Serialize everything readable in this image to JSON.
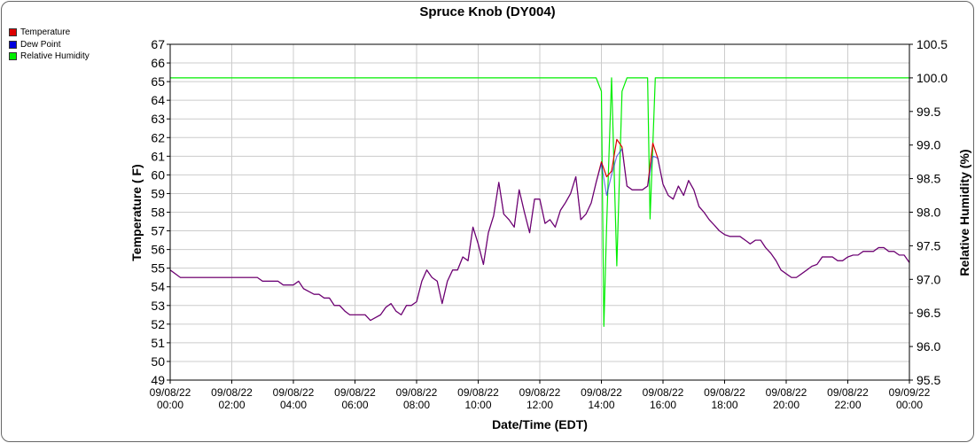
{
  "chart_data": {
    "type": "line",
    "title": "Spruce Knob (DY004)",
    "xlabel": "Date/Time (EDT)",
    "ylabel": "Temperature ( F)",
    "y2label": "Relative Humidity (%)",
    "ylim": [
      49,
      67
    ],
    "y2lim": [
      95.5,
      100.5
    ],
    "xlim": [
      0,
      24
    ],
    "y_ticks": [
      "67",
      "66",
      "65",
      "64",
      "63",
      "62",
      "61",
      "60",
      "59",
      "58",
      "57",
      "56",
      "55",
      "54",
      "53",
      "52",
      "51",
      "50",
      "49"
    ],
    "y2_ticks": [
      "100.5",
      "100.0",
      "99.5",
      "99.0",
      "98.5",
      "98.0",
      "97.5",
      "97.0",
      "96.5",
      "96.0",
      "95.5"
    ],
    "x_ticks": [
      {
        "date": "09/08/22",
        "time": "00:00"
      },
      {
        "date": "09/08/22",
        "time": "02:00"
      },
      {
        "date": "09/08/22",
        "time": "04:00"
      },
      {
        "date": "09/08/22",
        "time": "06:00"
      },
      {
        "date": "09/08/22",
        "time": "08:00"
      },
      {
        "date": "09/08/22",
        "time": "10:00"
      },
      {
        "date": "09/08/22",
        "time": "12:00"
      },
      {
        "date": "09/08/22",
        "time": "14:00"
      },
      {
        "date": "09/08/22",
        "time": "16:00"
      },
      {
        "date": "09/08/22",
        "time": "18:00"
      },
      {
        "date": "09/08/22",
        "time": "20:00"
      },
      {
        "date": "09/08/22",
        "time": "22:00"
      },
      {
        "date": "09/09/22",
        "time": "00:00"
      }
    ],
    "grid": true,
    "legend_position": "top-left",
    "series": [
      {
        "name": "Temperature",
        "color": "#dd0000",
        "axis": "left",
        "points": [
          [
            0,
            54.9
          ],
          [
            0.33,
            54.5
          ],
          [
            1,
            54.5
          ],
          [
            2,
            54.5
          ],
          [
            2.83,
            54.5
          ],
          [
            3,
            54.3
          ],
          [
            3.5,
            54.3
          ],
          [
            3.67,
            54.1
          ],
          [
            4,
            54.1
          ],
          [
            4.17,
            54.3
          ],
          [
            4.33,
            53.9
          ],
          [
            4.67,
            53.6
          ],
          [
            4.83,
            53.6
          ],
          [
            5,
            53.4
          ],
          [
            5.17,
            53.4
          ],
          [
            5.33,
            53.0
          ],
          [
            5.5,
            53.0
          ],
          [
            5.67,
            52.7
          ],
          [
            5.83,
            52.5
          ],
          [
            6,
            52.5
          ],
          [
            6.33,
            52.5
          ],
          [
            6.5,
            52.2
          ],
          [
            6.83,
            52.5
          ],
          [
            7,
            52.9
          ],
          [
            7.17,
            53.1
          ],
          [
            7.33,
            52.7
          ],
          [
            7.5,
            52.5
          ],
          [
            7.67,
            53.0
          ],
          [
            7.83,
            53.0
          ],
          [
            8,
            53.2
          ],
          [
            8.17,
            54.3
          ],
          [
            8.33,
            54.9
          ],
          [
            8.5,
            54.5
          ],
          [
            8.67,
            54.3
          ],
          [
            8.83,
            53.1
          ],
          [
            9,
            54.3
          ],
          [
            9.17,
            54.9
          ],
          [
            9.33,
            54.9
          ],
          [
            9.5,
            55.6
          ],
          [
            9.67,
            55.4
          ],
          [
            9.83,
            57.2
          ],
          [
            10,
            56.3
          ],
          [
            10.17,
            55.2
          ],
          [
            10.33,
            56.9
          ],
          [
            10.5,
            57.8
          ],
          [
            10.67,
            59.6
          ],
          [
            10.83,
            57.9
          ],
          [
            11,
            57.6
          ],
          [
            11.17,
            57.2
          ],
          [
            11.33,
            59.2
          ],
          [
            11.5,
            58.0
          ],
          [
            11.67,
            56.9
          ],
          [
            11.83,
            58.7
          ],
          [
            12,
            58.7
          ],
          [
            12.17,
            57.4
          ],
          [
            12.33,
            57.6
          ],
          [
            12.5,
            57.2
          ],
          [
            12.67,
            58.1
          ],
          [
            12.83,
            58.5
          ],
          [
            13,
            59.0
          ],
          [
            13.17,
            59.9
          ],
          [
            13.33,
            57.6
          ],
          [
            13.5,
            57.9
          ],
          [
            13.67,
            58.5
          ],
          [
            13.83,
            59.6
          ],
          [
            14,
            60.7
          ],
          [
            14.17,
            59.9
          ],
          [
            14.33,
            60.2
          ],
          [
            14.5,
            61.9
          ],
          [
            14.67,
            61.5
          ],
          [
            14.83,
            59.4
          ],
          [
            15,
            59.2
          ],
          [
            15.17,
            59.2
          ],
          [
            15.33,
            59.2
          ],
          [
            15.5,
            59.4
          ],
          [
            15.67,
            61.7
          ],
          [
            15.83,
            60.9
          ],
          [
            16,
            59.5
          ],
          [
            16.17,
            58.9
          ],
          [
            16.33,
            58.7
          ],
          [
            16.5,
            59.4
          ],
          [
            16.67,
            58.9
          ],
          [
            16.83,
            59.7
          ],
          [
            17,
            59.2
          ],
          [
            17.17,
            58.3
          ],
          [
            17.33,
            58.0
          ],
          [
            17.5,
            57.6
          ],
          [
            17.67,
            57.3
          ],
          [
            17.83,
            57.0
          ],
          [
            18,
            56.8
          ],
          [
            18.17,
            56.7
          ],
          [
            18.33,
            56.7
          ],
          [
            18.5,
            56.7
          ],
          [
            18.67,
            56.5
          ],
          [
            18.83,
            56.3
          ],
          [
            19,
            56.5
          ],
          [
            19.17,
            56.5
          ],
          [
            19.33,
            56.1
          ],
          [
            19.5,
            55.8
          ],
          [
            19.67,
            55.4
          ],
          [
            19.83,
            54.9
          ],
          [
            20,
            54.7
          ],
          [
            20.17,
            54.5
          ],
          [
            20.33,
            54.5
          ],
          [
            20.5,
            54.7
          ],
          [
            20.67,
            54.9
          ],
          [
            20.83,
            55.1
          ],
          [
            21,
            55.2
          ],
          [
            21.17,
            55.6
          ],
          [
            21.33,
            55.6
          ],
          [
            21.5,
            55.6
          ],
          [
            21.67,
            55.4
          ],
          [
            21.83,
            55.4
          ],
          [
            22,
            55.6
          ],
          [
            22.17,
            55.7
          ],
          [
            22.33,
            55.7
          ],
          [
            22.5,
            55.9
          ],
          [
            22.67,
            55.9
          ],
          [
            22.83,
            55.9
          ],
          [
            23,
            56.1
          ],
          [
            23.17,
            56.1
          ],
          [
            23.33,
            55.9
          ],
          [
            23.5,
            55.9
          ],
          [
            23.67,
            55.7
          ],
          [
            23.83,
            55.7
          ],
          [
            24,
            55.3
          ]
        ]
      },
      {
        "name": "Dew Point",
        "color": "#0000dd",
        "axis": "left",
        "points": [
          [
            0,
            54.9
          ],
          [
            0.33,
            54.5
          ],
          [
            1,
            54.5
          ],
          [
            2,
            54.5
          ],
          [
            2.83,
            54.5
          ],
          [
            3,
            54.3
          ],
          [
            3.5,
            54.3
          ],
          [
            3.67,
            54.1
          ],
          [
            4,
            54.1
          ],
          [
            4.17,
            54.3
          ],
          [
            4.33,
            53.9
          ],
          [
            4.67,
            53.6
          ],
          [
            4.83,
            53.6
          ],
          [
            5,
            53.4
          ],
          [
            5.17,
            53.4
          ],
          [
            5.33,
            53.0
          ],
          [
            5.5,
            53.0
          ],
          [
            5.67,
            52.7
          ],
          [
            5.83,
            52.5
          ],
          [
            6,
            52.5
          ],
          [
            6.33,
            52.5
          ],
          [
            6.5,
            52.2
          ],
          [
            6.83,
            52.5
          ],
          [
            7,
            52.9
          ],
          [
            7.17,
            53.1
          ],
          [
            7.33,
            52.7
          ],
          [
            7.5,
            52.5
          ],
          [
            7.67,
            53.0
          ],
          [
            7.83,
            53.0
          ],
          [
            8,
            53.2
          ],
          [
            8.17,
            54.3
          ],
          [
            8.33,
            54.9
          ],
          [
            8.5,
            54.5
          ],
          [
            8.67,
            54.3
          ],
          [
            8.83,
            53.1
          ],
          [
            9,
            54.3
          ],
          [
            9.17,
            54.9
          ],
          [
            9.33,
            54.9
          ],
          [
            9.5,
            55.6
          ],
          [
            9.67,
            55.4
          ],
          [
            9.83,
            57.2
          ],
          [
            10,
            56.3
          ],
          [
            10.17,
            55.2
          ],
          [
            10.33,
            56.9
          ],
          [
            10.5,
            57.8
          ],
          [
            10.67,
            59.6
          ],
          [
            10.83,
            57.9
          ],
          [
            11,
            57.6
          ],
          [
            11.17,
            57.2
          ],
          [
            11.33,
            59.2
          ],
          [
            11.5,
            58.0
          ],
          [
            11.67,
            56.9
          ],
          [
            11.83,
            58.7
          ],
          [
            12,
            58.7
          ],
          [
            12.17,
            57.4
          ],
          [
            12.33,
            57.6
          ],
          [
            12.5,
            57.2
          ],
          [
            12.67,
            58.1
          ],
          [
            12.83,
            58.5
          ],
          [
            13,
            59.0
          ],
          [
            13.17,
            59.9
          ],
          [
            13.33,
            57.6
          ],
          [
            13.5,
            57.9
          ],
          [
            13.67,
            58.5
          ],
          [
            13.83,
            59.6
          ],
          [
            14,
            60.6
          ],
          [
            14.17,
            58.9
          ],
          [
            14.33,
            60.0
          ],
          [
            14.5,
            61.0
          ],
          [
            14.67,
            61.4
          ],
          [
            14.83,
            59.4
          ],
          [
            15,
            59.2
          ],
          [
            15.17,
            59.2
          ],
          [
            15.33,
            59.2
          ],
          [
            15.5,
            59.4
          ],
          [
            15.67,
            61.0
          ],
          [
            15.83,
            60.9
          ],
          [
            16,
            59.5
          ],
          [
            16.17,
            58.9
          ],
          [
            16.33,
            58.7
          ],
          [
            16.5,
            59.4
          ],
          [
            16.67,
            58.9
          ],
          [
            16.83,
            59.7
          ],
          [
            17,
            59.2
          ],
          [
            17.17,
            58.3
          ],
          [
            17.33,
            58.0
          ],
          [
            17.5,
            57.6
          ],
          [
            17.67,
            57.3
          ],
          [
            17.83,
            57.0
          ],
          [
            18,
            56.8
          ],
          [
            18.17,
            56.7
          ],
          [
            18.33,
            56.7
          ],
          [
            18.5,
            56.7
          ],
          [
            18.67,
            56.5
          ],
          [
            18.83,
            56.3
          ],
          [
            19,
            56.5
          ],
          [
            19.17,
            56.5
          ],
          [
            19.33,
            56.1
          ],
          [
            19.5,
            55.8
          ],
          [
            19.67,
            55.4
          ],
          [
            19.83,
            54.9
          ],
          [
            20,
            54.7
          ],
          [
            20.17,
            54.5
          ],
          [
            20.33,
            54.5
          ],
          [
            20.5,
            54.7
          ],
          [
            20.67,
            54.9
          ],
          [
            20.83,
            55.1
          ],
          [
            21,
            55.2
          ],
          [
            21.17,
            55.6
          ],
          [
            21.33,
            55.6
          ],
          [
            21.5,
            55.6
          ],
          [
            21.67,
            55.4
          ],
          [
            21.83,
            55.4
          ],
          [
            22,
            55.6
          ],
          [
            22.17,
            55.7
          ],
          [
            22.33,
            55.7
          ],
          [
            22.5,
            55.9
          ],
          [
            22.67,
            55.9
          ],
          [
            22.83,
            55.9
          ],
          [
            23,
            56.1
          ],
          [
            23.17,
            56.1
          ],
          [
            23.33,
            55.9
          ],
          [
            23.5,
            55.9
          ],
          [
            23.67,
            55.7
          ],
          [
            23.83,
            55.7
          ],
          [
            24,
            55.3
          ]
        ]
      },
      {
        "name": "Relative Humidity",
        "color": "#00ee00",
        "axis": "right",
        "points": [
          [
            0,
            100.0
          ],
          [
            13.83,
            100.0
          ],
          [
            14.0,
            99.8
          ],
          [
            14.08,
            96.3
          ],
          [
            14.17,
            97.8
          ],
          [
            14.33,
            100.0
          ],
          [
            14.5,
            97.2
          ],
          [
            14.67,
            99.8
          ],
          [
            14.83,
            100.0
          ],
          [
            15.33,
            100.0
          ],
          [
            15.5,
            100.0
          ],
          [
            15.58,
            97.9
          ],
          [
            15.67,
            99.0
          ],
          [
            15.75,
            100.0
          ],
          [
            24,
            100.0
          ]
        ]
      }
    ]
  }
}
